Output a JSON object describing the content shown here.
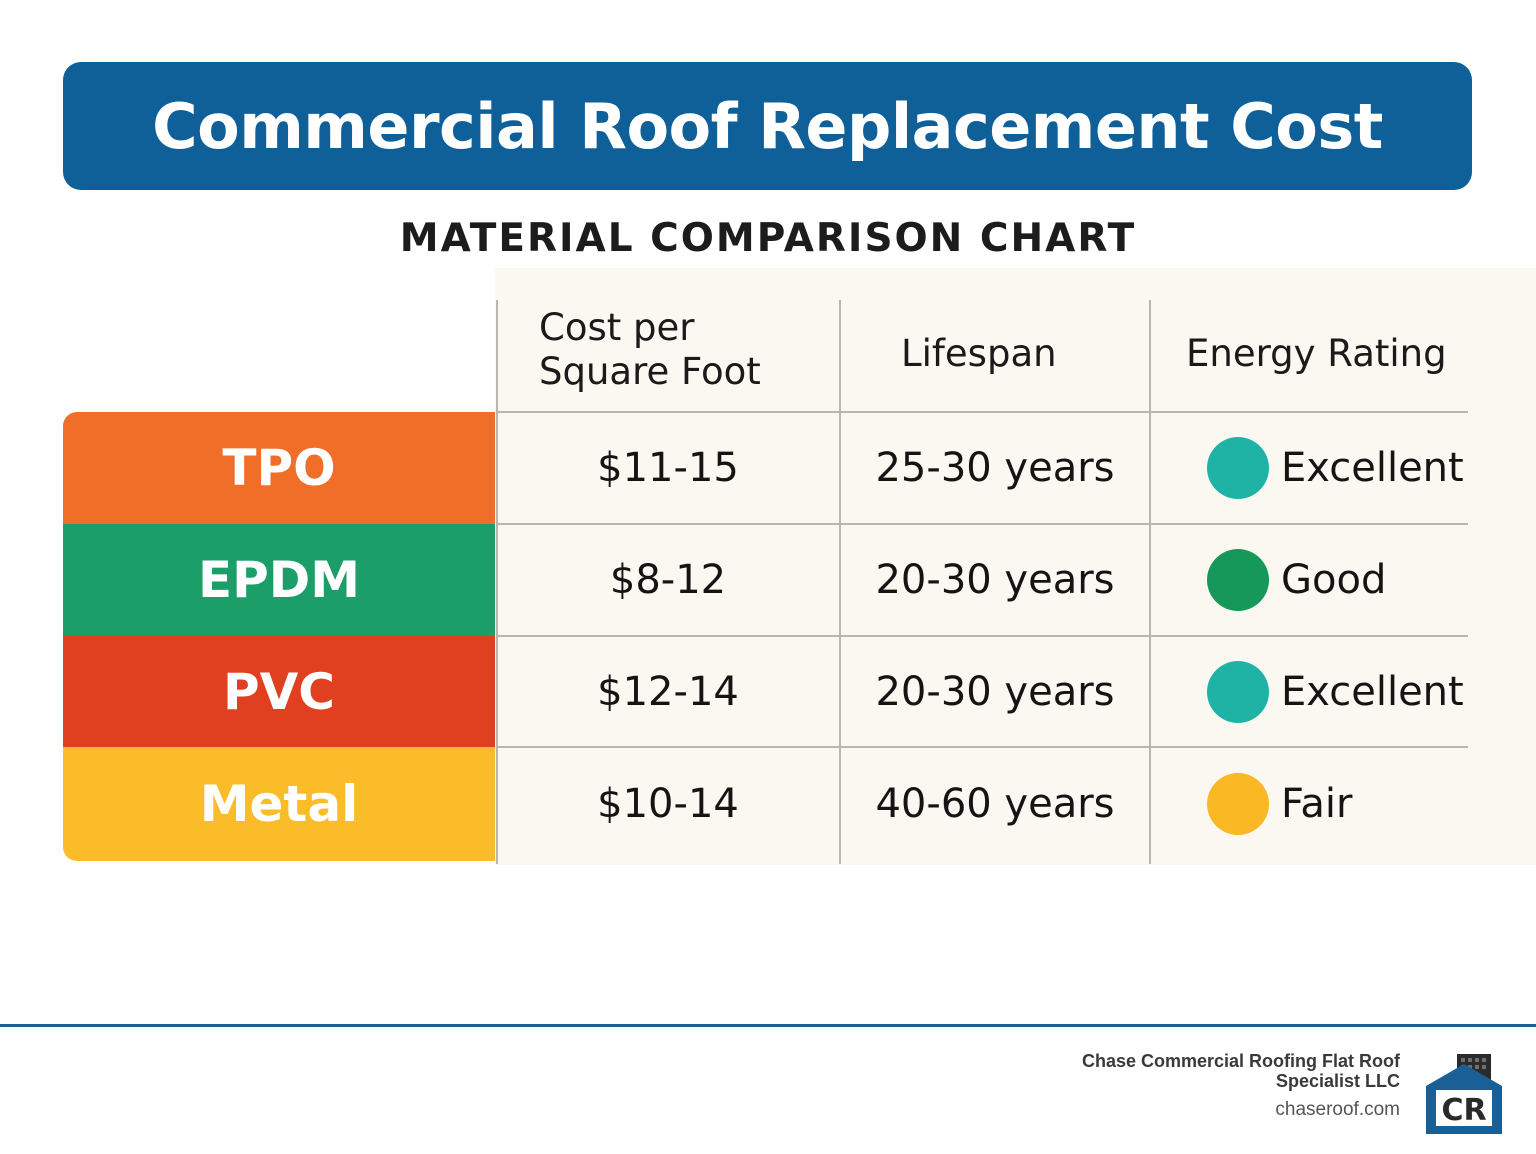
{
  "chart_data": {
    "type": "table",
    "title": "Commercial Roof Replacement Cost",
    "subtitle": "MATERIAL COMPARISON CHART",
    "columns": [
      "Cost per\nSquare Foot",
      "Lifespan",
      "Energy Rating"
    ],
    "rows": [
      {
        "material": "TPO",
        "color": "#f06e28",
        "cost": "$11-15",
        "lifespan": "25-30 years",
        "rating": "Excellent",
        "rating_color": "#1fb3a5"
      },
      {
        "material": "EPDM",
        "color": "#1b9e67",
        "cost": "$8-12",
        "lifespan": "20-30 years",
        "rating": "Good",
        "rating_color": "#15985a"
      },
      {
        "material": "PVC",
        "color": "#e03f20",
        "cost": "$12-14",
        "lifespan": "20-30 years",
        "rating": "Excellent",
        "rating_color": "#1fb3a5"
      },
      {
        "material": "Metal",
        "color": "#fbbc2a",
        "cost": "$10-14",
        "lifespan": "40-60 years",
        "rating": "Fair",
        "rating_color": "#f9b824"
      }
    ]
  },
  "footer": {
    "company_line1": "Chase Commercial Roofing Flat Roof",
    "company_line2": "Specialist LLC",
    "website": "chaseroof.com",
    "logo_text": "CR"
  },
  "colors": {
    "title_bar": "#0f5f98",
    "footer_line": "#1d5f8f",
    "table_bg": "#fbf8f1"
  }
}
